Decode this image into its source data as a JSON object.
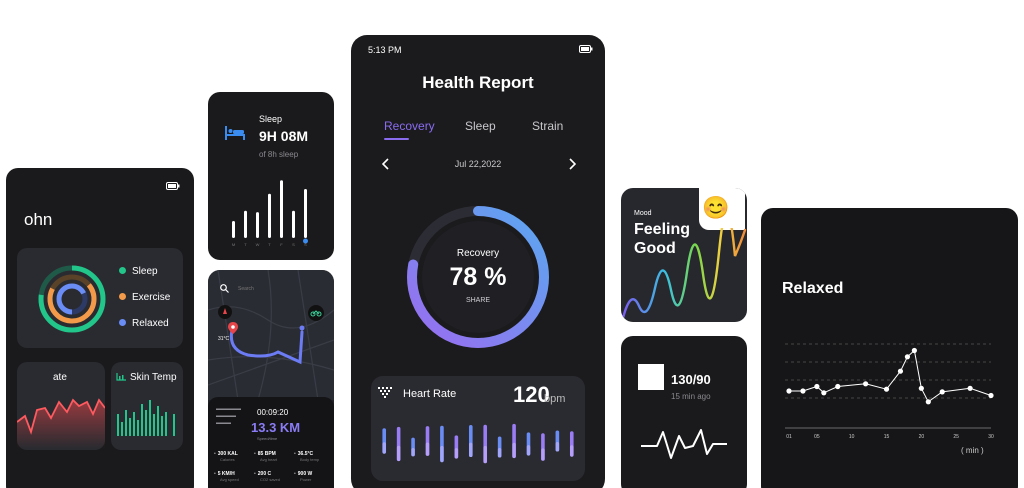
{
  "colors": {
    "accent_purple": "#8a6cf0",
    "accent_blue": "#5aa0f0",
    "sleep_green": "#22c58a",
    "exercise_orange": "#f39a4a",
    "relaxed_blue": "#6a8cf5",
    "card_bg": "#1a1a1c"
  },
  "left_phone": {
    "title": "ohn",
    "legend": [
      {
        "label": "Sleep",
        "color": "#22c58a"
      },
      {
        "label": "Exercise",
        "color": "#f39a4a"
      },
      {
        "label": "Relaxed",
        "color": "#6a8cf5"
      }
    ],
    "heart_panel_label": "ate",
    "skin_temp_label": "Skin Temp"
  },
  "sleep_card": {
    "label": "Sleep",
    "value": "9H 08M",
    "sub": "of 8h sleep",
    "bars": [
      0.25,
      0.4,
      0.38,
      0.65,
      0.85,
      0.4,
      0.72
    ],
    "days": [
      "M",
      "T",
      "W",
      "T",
      "F",
      "S",
      "S"
    ]
  },
  "map_card": {
    "search_placeholder": "Search",
    "time": "00:09:20",
    "distance": "13.3 KM",
    "sub": "Speed/time",
    "stats": [
      {
        "value": "300 KAL",
        "label": "Calories",
        "icon": "fire-icon"
      },
      {
        "value": "85 BPM",
        "label": "Avg heart",
        "icon": "heart-icon"
      },
      {
        "value": "36.5°C",
        "label": "Body temp",
        "icon": "thermo-icon"
      },
      {
        "value": "5 KM/H",
        "label": "Avg speed",
        "icon": "speed-icon"
      },
      {
        "value": "200 C",
        "label": "CO2 saved",
        "icon": "leaf-icon"
      },
      {
        "value": "900 W",
        "label": "Power",
        "icon": "power-icon"
      }
    ],
    "temp": "31°C"
  },
  "center_phone": {
    "time": "5:13 PM",
    "title": "Health Report",
    "tabs": [
      "Recovery",
      "Sleep",
      "Strain"
    ],
    "date": "Jul 22,2022",
    "recovery_label": "Recovery",
    "recovery_value": "78 %",
    "recovery_fraction": 0.78,
    "share_label": "SHARE",
    "heart_rate_label": "Heart Rate",
    "heart_rate_value": "120",
    "heart_rate_unit": "bpm",
    "hr_bars": [
      0.35,
      0.55,
      0.2,
      0.45,
      0.6,
      0.3,
      0.5,
      0.65,
      0.25,
      0.55,
      0.3,
      0.4,
      0.25,
      0.35
    ]
  },
  "mood_card": {
    "label": "Mood",
    "value_line1": "Feeling",
    "value_line2": "Good",
    "emoji": "😊"
  },
  "bp_card": {
    "value": "130/90",
    "sub": "15 min ago"
  },
  "chart_card": {
    "title": "Relaxed",
    "unit_label": "( min )"
  },
  "chart_data": {
    "type": "line",
    "title": "Relaxed",
    "xlabel": "( min )",
    "x_ticks": [
      "01",
      "05",
      "10",
      "15",
      "20",
      "25",
      "30"
    ],
    "x": [
      1,
      3,
      5,
      6,
      8,
      12,
      15,
      17,
      18,
      19,
      20,
      21,
      23,
      27,
      30
    ],
    "y": [
      3,
      3,
      3.5,
      2.8,
      3.5,
      3.8,
      3.2,
      5.2,
      6.8,
      7.5,
      3.3,
      1.8,
      2.9,
      3.3,
      2.5
    ],
    "ylim": [
      0,
      10
    ],
    "grid": "horizontal dashed"
  }
}
